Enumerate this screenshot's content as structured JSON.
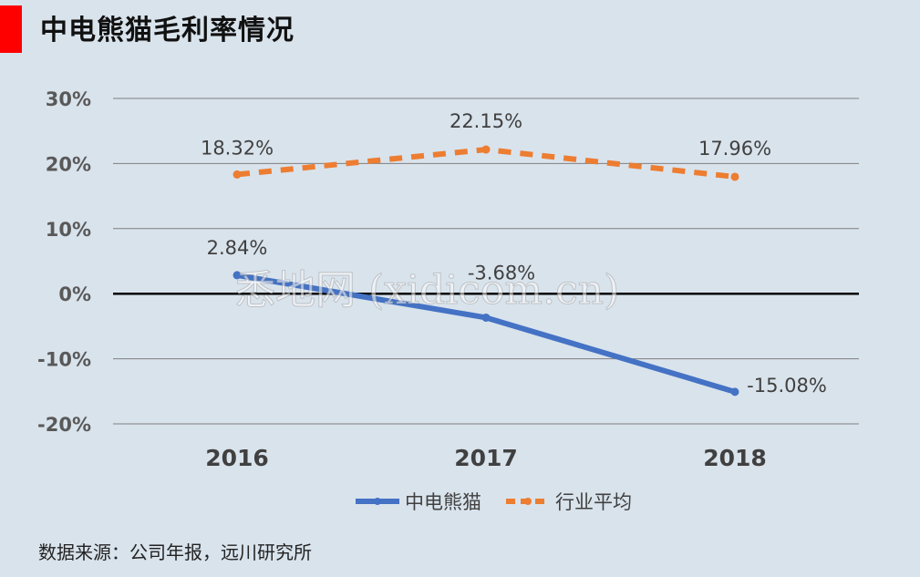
{
  "title": "中电熊猫毛利率情况",
  "source": "数据来源：公司年报，远川研究所",
  "watermark": "悉地网 (xidicom.cn)",
  "colors": {
    "accent": "#ff0000",
    "panda": "#4472c4",
    "industry": "#ed7d31",
    "zero_line": "#000000"
  },
  "chart_data": {
    "type": "line",
    "categories": [
      "2016",
      "2017",
      "2018"
    ],
    "ylim": [
      -20,
      30
    ],
    "yticks": [
      "30%",
      "20%",
      "10%",
      "0%",
      "-10%",
      "-20%"
    ],
    "ytick_values": [
      30,
      20,
      10,
      0,
      -10,
      -20
    ],
    "grid": true,
    "legend_position": "bottom",
    "series": [
      {
        "name": "中电熊猫",
        "values": [
          2.84,
          -3.68,
          -15.08
        ],
        "labels": [
          "2.84%",
          "-3.68%",
          "-15.08%"
        ],
        "style": "solid"
      },
      {
        "name": "行业平均",
        "values": [
          18.32,
          22.15,
          17.96
        ],
        "labels": [
          "18.32%",
          "22.15%",
          "17.96%"
        ],
        "style": "dashed"
      }
    ]
  }
}
